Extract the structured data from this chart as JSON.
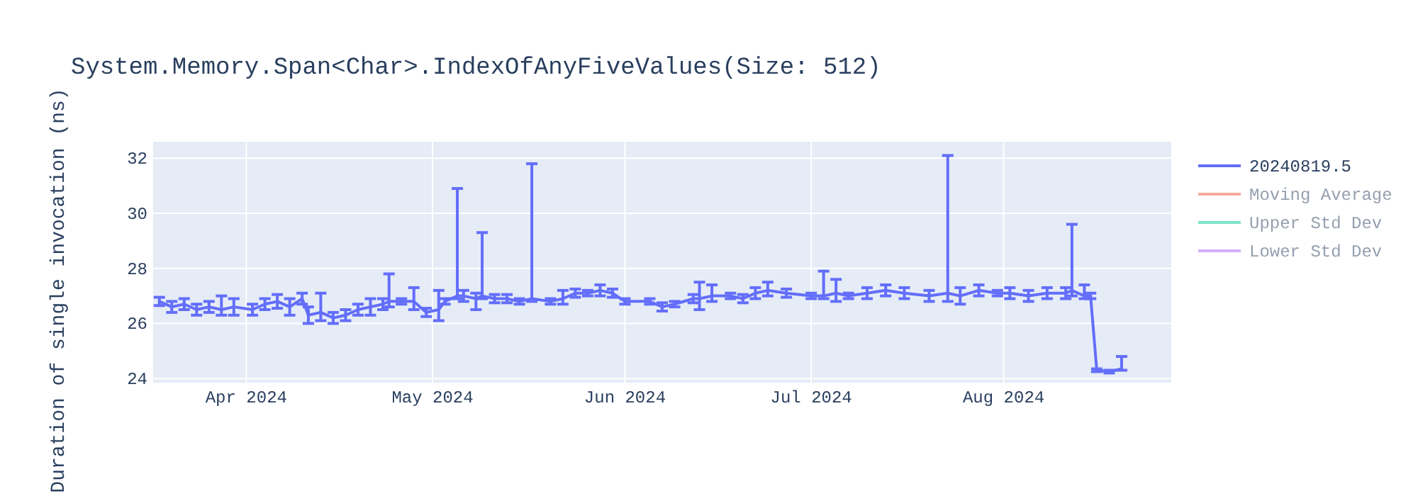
{
  "chart_data": {
    "type": "line",
    "title": "System.Memory.Span<Char>.IndexOfAnyFiveValues(Size: 512)",
    "ylabel": "Duration of single invocation (ns)",
    "x": [
      "2024-03-18",
      "2024-03-20",
      "2024-03-22",
      "2024-03-24",
      "2024-03-26",
      "2024-03-28",
      "2024-03-30",
      "2024-04-02",
      "2024-04-04",
      "2024-04-06",
      "2024-04-08",
      "2024-04-10",
      "2024-04-11",
      "2024-04-13",
      "2024-04-15",
      "2024-04-17",
      "2024-04-19",
      "2024-04-21",
      "2024-04-23",
      "2024-04-24",
      "2024-04-26",
      "2024-04-28",
      "2024-04-30",
      "2024-05-02",
      "2024-05-03",
      "2024-05-05",
      "2024-05-06",
      "2024-05-08",
      "2024-05-09",
      "2024-05-11",
      "2024-05-13",
      "2024-05-15",
      "2024-05-17",
      "2024-05-20",
      "2024-05-22",
      "2024-05-24",
      "2024-05-26",
      "2024-05-28",
      "2024-05-30",
      "2024-06-01",
      "2024-06-05",
      "2024-06-07",
      "2024-06-09",
      "2024-06-12",
      "2024-06-13",
      "2024-06-15",
      "2024-06-18",
      "2024-06-20",
      "2024-06-22",
      "2024-06-24",
      "2024-06-27",
      "2024-07-01",
      "2024-07-03",
      "2024-07-05",
      "2024-07-07",
      "2024-07-10",
      "2024-07-13",
      "2024-07-16",
      "2024-07-20",
      "2024-07-23",
      "2024-07-25",
      "2024-07-28",
      "2024-07-31",
      "2024-08-02",
      "2024-08-05",
      "2024-08-08",
      "2024-08-11",
      "2024-08-12",
      "2024-08-14",
      "2024-08-15",
      "2024-08-16",
      "2024-08-18",
      "2024-08-20"
    ],
    "series": [
      {
        "name": "20240819.5",
        "color": "#636efa",
        "values": [
          26.8,
          26.6,
          26.7,
          26.5,
          26.6,
          26.5,
          26.6,
          26.5,
          26.7,
          26.8,
          26.6,
          26.9,
          26.3,
          26.4,
          26.2,
          26.3,
          26.5,
          26.6,
          26.7,
          26.8,
          26.8,
          26.8,
          26.4,
          26.5,
          26.8,
          27.0,
          27.0,
          26.9,
          27.0,
          26.9,
          26.9,
          26.8,
          26.9,
          26.8,
          26.9,
          27.1,
          27.1,
          27.2,
          27.1,
          26.8,
          26.8,
          26.6,
          26.7,
          26.9,
          26.9,
          27.0,
          27.0,
          26.9,
          27.1,
          27.2,
          27.1,
          27.0,
          27.0,
          27.1,
          27.0,
          27.1,
          27.2,
          27.1,
          27.0,
          27.1,
          27.0,
          27.2,
          27.1,
          27.1,
          27.0,
          27.1,
          27.1,
          27.2,
          27.0,
          27.0,
          24.3,
          24.25,
          24.35
        ],
        "errors": [
          0.15,
          0.2,
          0.2,
          0.2,
          0.2,
          [
            26.3,
            27.0
          ],
          0.3,
          0.2,
          0.2,
          0.25,
          0.3,
          0.2,
          0.3,
          [
            26.1,
            27.1
          ],
          0.2,
          0.2,
          0.2,
          0.3,
          0.2,
          [
            26.6,
            27.8
          ],
          0.1,
          [
            26.5,
            27.3
          ],
          0.15,
          [
            26.1,
            27.2
          ],
          0.1,
          [
            26.9,
            30.9
          ],
          0.2,
          [
            26.5,
            27.1
          ],
          [
            26.9,
            29.3
          ],
          0.15,
          0.15,
          0.1,
          [
            26.8,
            31.8
          ],
          0.1,
          [
            26.7,
            27.2
          ],
          0.15,
          0.1,
          0.2,
          0.15,
          0.1,
          0.1,
          0.15,
          0.1,
          0.15,
          [
            26.5,
            27.5
          ],
          [
            26.8,
            27.4
          ],
          0.1,
          0.15,
          0.2,
          [
            27.0,
            27.5
          ],
          0.15,
          0.1,
          [
            26.9,
            27.9
          ],
          [
            26.8,
            27.6
          ],
          0.1,
          0.2,
          0.2,
          0.2,
          0.2,
          [
            26.8,
            32.1
          ],
          0.3,
          0.2,
          0.1,
          0.2,
          0.2,
          0.2,
          0.2,
          [
            27.0,
            29.6
          ],
          [
            26.9,
            27.4
          ],
          0.1,
          0.05,
          0.05,
          [
            24.3,
            24.8
          ]
        ]
      },
      {
        "name": "Moving Average",
        "color": "#ef553b",
        "values": [
          null,
          null,
          null,
          null,
          null,
          null,
          null,
          null,
          null,
          null,
          null,
          null,
          null,
          null,
          null,
          null,
          null,
          null,
          null,
          null,
          null,
          null,
          null,
          null,
          null,
          null,
          null,
          null,
          null,
          null,
          null,
          null,
          null,
          null,
          null,
          null,
          null,
          null,
          null,
          null,
          null,
          null,
          null,
          null,
          null,
          null,
          null,
          null,
          null,
          null,
          null,
          null,
          null,
          null,
          null,
          null,
          null,
          null,
          null,
          null,
          null,
          null,
          null,
          null,
          null,
          null,
          null,
          null,
          null,
          null,
          null,
          null,
          null
        ]
      },
      {
        "name": "Upper Std Dev",
        "color": "#00cc96",
        "values": [
          null,
          null,
          null,
          null,
          null,
          null,
          null,
          null,
          null,
          null,
          null,
          null,
          null,
          null,
          null,
          null,
          null,
          null,
          null,
          null,
          null,
          null,
          null,
          null,
          null,
          null,
          null,
          null,
          null,
          null,
          null,
          null,
          null,
          null,
          null,
          null,
          null,
          null,
          null,
          null,
          null,
          null,
          null,
          null,
          null,
          null,
          null,
          null,
          null,
          null,
          null,
          null,
          null,
          null,
          null,
          null,
          null,
          null,
          null,
          null,
          null,
          null,
          null,
          null,
          null,
          null,
          null,
          null,
          null,
          null,
          null,
          null,
          null
        ]
      },
      {
        "name": "Lower Std Dev",
        "color": "#ab63fa",
        "values": [
          null,
          null,
          null,
          null,
          null,
          null,
          null,
          null,
          null,
          null,
          null,
          null,
          null,
          null,
          null,
          null,
          null,
          null,
          null,
          null,
          null,
          null,
          null,
          null,
          null,
          null,
          null,
          null,
          null,
          null,
          null,
          null,
          null,
          null,
          null,
          null,
          null,
          null,
          null,
          null,
          null,
          null,
          null,
          null,
          null,
          null,
          null,
          null,
          null,
          null,
          null,
          null,
          null,
          null,
          null,
          null,
          null,
          null,
          null,
          null,
          null,
          null,
          null,
          null,
          null,
          null,
          null,
          null,
          null,
          null,
          null,
          null,
          null
        ]
      }
    ],
    "xlim": [
      "2024-03-17",
      "2024-08-28"
    ],
    "xticks": [
      {
        "value": "2024-04-01",
        "label": "Apr 2024"
      },
      {
        "value": "2024-05-01",
        "label": "May 2024"
      },
      {
        "value": "2024-06-01",
        "label": "Jun 2024"
      },
      {
        "value": "2024-07-01",
        "label": "Jul 2024"
      },
      {
        "value": "2024-08-01",
        "label": "Aug 2024"
      }
    ],
    "ylim": [
      23.85,
      32.6
    ],
    "yticks": [
      24,
      26,
      28,
      30,
      32
    ],
    "grid": true,
    "legend": "right",
    "marker": "none",
    "line_style": "solid"
  }
}
